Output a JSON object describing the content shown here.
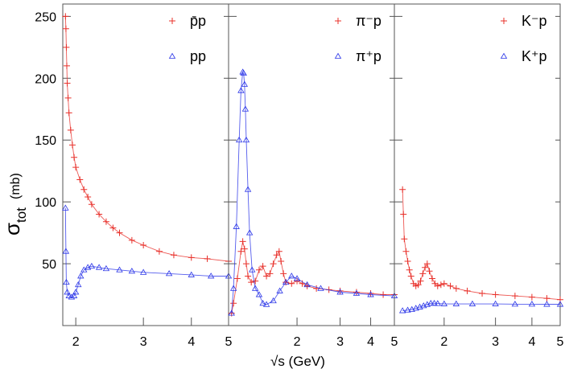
{
  "chart_data": [
    {
      "type": "scatter",
      "xscale": "log",
      "xlim": [
        1.85,
        5.0
      ],
      "ylim": [
        0,
        260
      ],
      "ylabel": "σ_tot (mb)",
      "xlabel": "√s  (GeV)",
      "yticks": [
        50,
        100,
        150,
        200,
        250
      ],
      "xticks": [
        2,
        3,
        4,
        5
      ],
      "legend_position": "top-right",
      "series": [
        {
          "name": "p̄p",
          "marker": "plus",
          "color": "#e8302a",
          "x": [
            1.88,
            1.885,
            1.89,
            1.895,
            1.9,
            1.91,
            1.92,
            1.94,
            1.96,
            1.98,
            2.0,
            2.05,
            2.1,
            2.15,
            2.2,
            2.3,
            2.4,
            2.5,
            2.6,
            2.8,
            3.0,
            3.3,
            3.6,
            4.0,
            4.4,
            5.0
          ],
          "y": [
            250,
            240,
            225,
            210,
            196,
            184,
            172,
            158,
            146,
            136,
            128,
            118,
            110,
            104,
            98,
            90,
            84,
            79,
            75,
            69,
            65,
            60,
            57,
            55,
            54,
            52
          ]
        },
        {
          "name": "pp",
          "marker": "triangle",
          "color": "#2a35e8",
          "x": [
            1.88,
            1.885,
            1.89,
            1.9,
            1.92,
            1.95,
            1.98,
            2.0,
            2.03,
            2.06,
            2.1,
            2.15,
            2.2,
            2.3,
            2.4,
            2.6,
            2.8,
            3.0,
            3.5,
            4.0,
            4.5,
            5.0
          ],
          "y": [
            95,
            60,
            35,
            27,
            24,
            23,
            24,
            27,
            33,
            40,
            45,
            47,
            48,
            47,
            46,
            45,
            44,
            43,
            42,
            41,
            40,
            40
          ]
        }
      ]
    },
    {
      "type": "scatter",
      "xscale": "log",
      "xlim": [
        1.05,
        5.0
      ],
      "ylim": [
        0,
        260
      ],
      "xticks": [
        2,
        3,
        4,
        5
      ],
      "legend_position": "top-right",
      "series": [
        {
          "name": "π⁻p",
          "marker": "plus",
          "color": "#e8302a",
          "x": [
            1.08,
            1.1,
            1.14,
            1.18,
            1.2,
            1.22,
            1.24,
            1.26,
            1.3,
            1.35,
            1.4,
            1.45,
            1.5,
            1.55,
            1.6,
            1.65,
            1.69,
            1.72,
            1.76,
            1.8,
            1.9,
            2.0,
            2.1,
            2.2,
            2.4,
            2.7,
            3.0,
            3.5,
            4.0,
            4.5,
            5.0
          ],
          "y": [
            10,
            18,
            38,
            60,
            68,
            62,
            50,
            40,
            35,
            36,
            45,
            48,
            40,
            42,
            50,
            57,
            60,
            52,
            42,
            35,
            34,
            36,
            34,
            32,
            30,
            29,
            28,
            27,
            26,
            25,
            25
          ]
        },
        {
          "name": "π⁺p",
          "marker": "triangle",
          "color": "#2a35e8",
          "x": [
            1.08,
            1.1,
            1.13,
            1.16,
            1.18,
            1.2,
            1.21,
            1.22,
            1.23,
            1.24,
            1.26,
            1.28,
            1.31,
            1.35,
            1.4,
            1.45,
            1.5,
            1.6,
            1.7,
            1.8,
            1.9,
            2.0,
            2.2,
            2.5,
            3.0,
            3.5,
            4.0,
            5.0
          ],
          "y": [
            10,
            30,
            80,
            150,
            190,
            205,
            204,
            195,
            175,
            150,
            110,
            75,
            45,
            30,
            25,
            18,
            17,
            20,
            28,
            35,
            40,
            38,
            33,
            30,
            27,
            26,
            25,
            24
          ]
        }
      ]
    },
    {
      "type": "scatter",
      "xscale": "log",
      "xlim": [
        1.35,
        5.0
      ],
      "ylim": [
        0,
        260
      ],
      "xticks": [
        2,
        3,
        4,
        5
      ],
      "legend_position": "top-right",
      "series": [
        {
          "name": "K⁻p",
          "marker": "plus",
          "color": "#e8302a",
          "x": [
            1.44,
            1.45,
            1.46,
            1.48,
            1.5,
            1.52,
            1.54,
            1.57,
            1.6,
            1.63,
            1.66,
            1.69,
            1.72,
            1.75,
            1.78,
            1.82,
            1.86,
            1.9,
            1.95,
            2.0,
            2.1,
            2.2,
            2.4,
            2.7,
            3.0,
            3.5,
            4.0,
            4.5,
            5.0
          ],
          "y": [
            110,
            90,
            70,
            60,
            52,
            45,
            40,
            34,
            32,
            33,
            36,
            42,
            47,
            50,
            44,
            38,
            34,
            32,
            33,
            34,
            32,
            30,
            28,
            26,
            25,
            24,
            23,
            22,
            21
          ]
        },
        {
          "name": "K⁺p",
          "marker": "triangle",
          "color": "#2a35e8",
          "x": [
            1.44,
            1.5,
            1.55,
            1.6,
            1.65,
            1.7,
            1.75,
            1.8,
            1.85,
            1.9,
            2.0,
            2.2,
            2.5,
            3.0,
            3.5,
            4.0,
            4.5,
            5.0
          ],
          "y": [
            12,
            12.5,
            13,
            14,
            15,
            16,
            17,
            18,
            18,
            17.8,
            17.5,
            17.5,
            17.5,
            17.5,
            17.3,
            17.3,
            17.2,
            17.2
          ]
        }
      ]
    }
  ]
}
